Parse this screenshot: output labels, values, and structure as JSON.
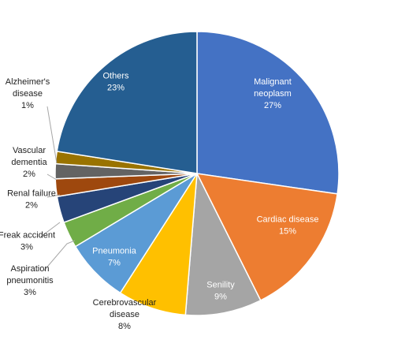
{
  "chart_data": {
    "type": "pie",
    "title": "",
    "slices": [
      {
        "name": "Malignant neoplasm",
        "label_lines": [
          "Malignant",
          "neoplasm"
        ],
        "pct_text": "27%",
        "value": 27.3,
        "color": "#4472C4",
        "label_color": "#ffffff"
      },
      {
        "name": "Cardiac disease",
        "label_lines": [
          "Cardiac disease"
        ],
        "pct_text": "15%",
        "value": 15.3,
        "color": "#ED7D31",
        "label_color": "#ffffff"
      },
      {
        "name": "Senility",
        "label_lines": [
          "Senility"
        ],
        "pct_text": "9%",
        "value": 8.7,
        "color": "#A5A5A5",
        "label_color": "#ffffff"
      },
      {
        "name": "Cerebrovascular disease",
        "label_lines": [
          "Cerebrovascular",
          "disease"
        ],
        "pct_text": "8%",
        "value": 7.8,
        "color": "#FFC000",
        "label_color": "#1f1f1f"
      },
      {
        "name": "Pneumonia",
        "label_lines": [
          "Pneumonia"
        ],
        "pct_text": "7%",
        "value": 7.3,
        "color": "#5B9BD5",
        "label_color": "#ffffff"
      },
      {
        "name": "Aspiration pneumonitis",
        "label_lines": [
          "Aspiration",
          "pneumonitis"
        ],
        "pct_text": "3%",
        "value": 3.0,
        "color": "#70AD47",
        "label_color": "#1f1f1f"
      },
      {
        "name": "Freak accident",
        "label_lines": [
          "Freak accident"
        ],
        "pct_text": "3%",
        "value": 3.0,
        "color": "#264478",
        "label_color": "#1f1f1f"
      },
      {
        "name": "Renal failure",
        "label_lines": [
          "Renal failure"
        ],
        "pct_text": "2%",
        "value": 2.0,
        "color": "#9E480E",
        "label_color": "#1f1f1f"
      },
      {
        "name": "Vascular dementia",
        "label_lines": [
          "Vascular",
          "dementia"
        ],
        "pct_text": "2%",
        "value": 1.7,
        "color": "#636363",
        "label_color": "#1f1f1f"
      },
      {
        "name": "Alzheimer's disease",
        "label_lines": [
          "Alzheimer's",
          "disease"
        ],
        "pct_text": "1%",
        "value": 1.4,
        "color": "#997300",
        "label_color": "#1f1f1f"
      },
      {
        "name": "Others",
        "label_lines": [
          "Others"
        ],
        "pct_text": "23%",
        "value": 22.5,
        "color": "#255E91",
        "label_color": "#ffffff"
      }
    ]
  }
}
